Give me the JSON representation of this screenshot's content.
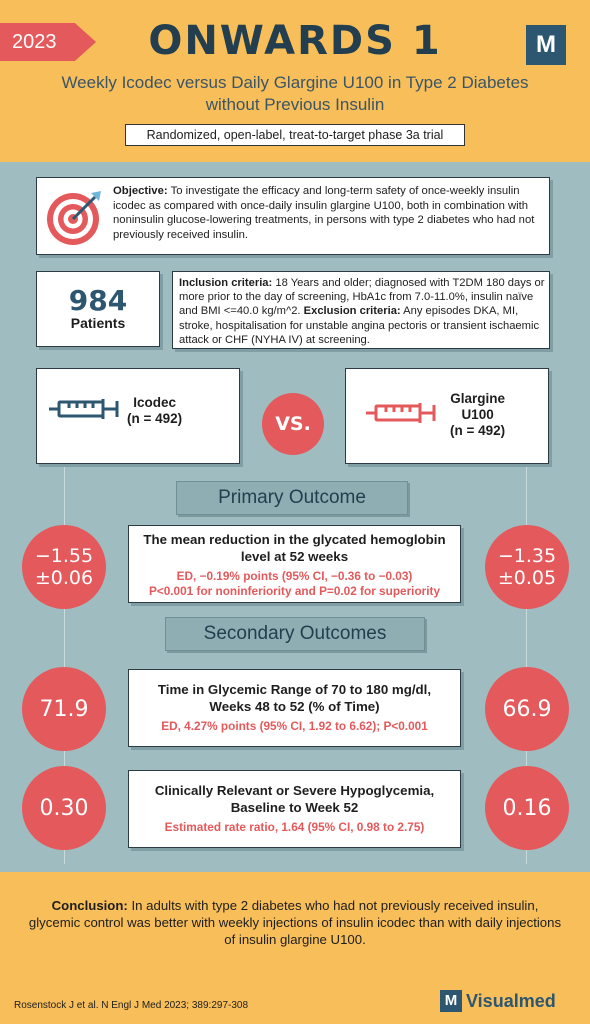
{
  "header": {
    "year": "2023",
    "title": "ONWARDS 1",
    "logo_letter": "M",
    "subtitle_line1": "Weekly Icodec versus Daily Glargine U100 in Type 2 Diabetes",
    "subtitle_line2": "without Previous Insulin",
    "design": "Randomized, open-label, treat-to-target phase 3a trial"
  },
  "objective": {
    "label": "Objective:",
    "text": "To investigate the efficacy and long-term safety of once-weekly insulin icodec as compared with once-daily insulin glargine U100, both in combination with noninsulin glucose-lowering treatments, in persons with type 2 diabetes who had not previously received insulin."
  },
  "patients": {
    "count": "984",
    "label": "Patients"
  },
  "criteria": {
    "inclusion_label": "Inclusion criteria:",
    "inclusion_text": "18 Years and older; diagnosed with T2DM 180 days or more prior to the day of screening, HbA1c from 7.0-11.0%, insulin naïve and BMI <=40.0 kg/m^2.",
    "exclusion_label": "Exclusion criteria:",
    "exclusion_text": "Any episodes DKA, MI, stroke, hospitalisation for unstable angina pectoris or transient ischaemic attack or CHF (NYHA IV) at screening."
  },
  "arms": {
    "left": {
      "name": "Icodec",
      "n": "(n = 492)",
      "color": "#2d5770"
    },
    "vs": "VS.",
    "right": {
      "name_line1": "Glargine",
      "name_line2": "U100",
      "n": "(n = 492)",
      "color": "#e4595b"
    }
  },
  "primary": {
    "banner": "Primary Outcome",
    "title_line1": "The mean reduction in the glycated hemoglobin",
    "title_line2": "level at 52 weeks",
    "detail_line1": "ED, −0.19% points (95% CI, −0.36 to −0.03)",
    "detail_line2": "P<0.001 for noninferiority and P=0.02 for superiority",
    "left_value_line1": "−1.55",
    "left_value_line2": "±0.06",
    "right_value_line1": "−1.35",
    "right_value_line2": "±0.05"
  },
  "secondary": {
    "banner": "Secondary Outcomes",
    "tir": {
      "title_line1": "Time in Glycemic Range of 70 to 180 mg/dl,",
      "title_line2": "Weeks 48 to 52 (% of Time)",
      "detail": "ED, 4.27% points (95% CI, 1.92 to 6.62); P<0.001",
      "left_value": "71.9",
      "right_value": "66.9"
    },
    "hypo": {
      "title_line1": "Clinically Relevant or Severe Hypoglycemia,",
      "title_line2": "Baseline to Week 52",
      "detail": "Estimated rate ratio, 1.64 (95% CI, 0.98 to 2.75)",
      "left_value": "0.30",
      "right_value": "0.16"
    }
  },
  "conclusion": {
    "label": "Conclusion:",
    "text": "In adults with type 2 diabetes who had not previously received insulin, glycemic control was better with weekly injections of insulin icodec than with daily injections of insulin glargine U100."
  },
  "citation": "Rosenstock J et al. N Engl J Med 2023; 389:297-308",
  "brand": {
    "letter": "M",
    "name": "Visualmed"
  },
  "colors": {
    "accent_red": "#e4595b",
    "navy": "#2d5770",
    "header_yellow": "#f7be5a",
    "body_teal": "#9fbcc0"
  }
}
